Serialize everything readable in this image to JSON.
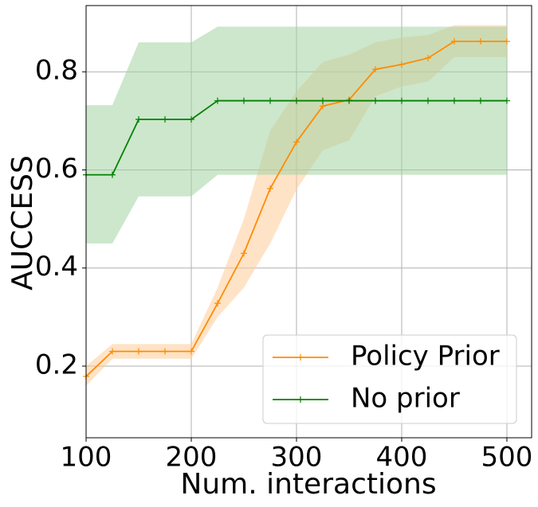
{
  "chart_data": {
    "type": "line",
    "x_label": "Num. interactions",
    "y_label": "AUCCESS",
    "x": [
      100,
      125,
      150,
      175,
      200,
      225,
      250,
      275,
      300,
      325,
      350,
      375,
      400,
      425,
      450,
      475,
      500
    ],
    "series": [
      {
        "name": "Policy Prior",
        "color": "#ff8c00",
        "band_color": "#ffcc99",
        "values": [
          0.179,
          0.23,
          0.23,
          0.23,
          0.23,
          0.328,
          0.43,
          0.562,
          0.657,
          0.73,
          0.743,
          0.805,
          0.815,
          0.828,
          0.862,
          0.862,
          0.862
        ],
        "lower": [
          0.16,
          0.215,
          0.215,
          0.215,
          0.215,
          0.3,
          0.36,
          0.45,
          0.56,
          0.64,
          0.66,
          0.75,
          0.77,
          0.78,
          0.83,
          0.83,
          0.83
        ],
        "upper": [
          0.2,
          0.245,
          0.245,
          0.245,
          0.245,
          0.36,
          0.5,
          0.68,
          0.76,
          0.82,
          0.835,
          0.86,
          0.87,
          0.875,
          0.895,
          0.895,
          0.895
        ]
      },
      {
        "name": "No prior",
        "color": "#008000",
        "band_color": "#a3d3a3",
        "values": [
          0.59,
          0.59,
          0.703,
          0.703,
          0.703,
          0.741,
          0.741,
          0.741,
          0.741,
          0.741,
          0.741,
          0.741,
          0.741,
          0.741,
          0.741,
          0.741,
          0.741
        ],
        "lower": [
          0.45,
          0.45,
          0.546,
          0.546,
          0.546,
          0.59,
          0.59,
          0.59,
          0.59,
          0.59,
          0.59,
          0.59,
          0.59,
          0.59,
          0.59,
          0.59,
          0.59
        ],
        "upper": [
          0.732,
          0.732,
          0.86,
          0.86,
          0.86,
          0.892,
          0.892,
          0.892,
          0.892,
          0.892,
          0.892,
          0.892,
          0.892,
          0.892,
          0.892,
          0.892,
          0.892
        ]
      }
    ],
    "xlim": [
      100,
      523.5
    ],
    "xticks": [
      100,
      200,
      300,
      400,
      500
    ],
    "ylim": [
      0.054,
      0.935
    ],
    "yticks": [
      0.2,
      0.4,
      0.6,
      0.8
    ],
    "grid": true,
    "legend": "lower right"
  }
}
